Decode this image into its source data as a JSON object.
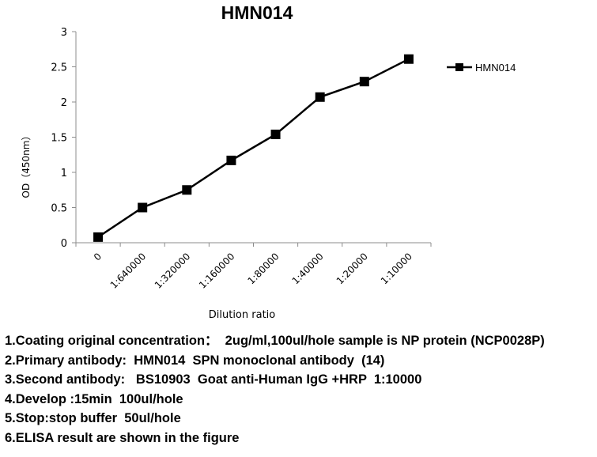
{
  "chart_data": {
    "type": "line",
    "title": "HMN014",
    "xlabel": "Dilution ratio",
    "ylabel": "OD（450nm）",
    "categories": [
      "0",
      "1:640000",
      "1:320000",
      "1:160000",
      "1:80000",
      "1:40000",
      "1:20000",
      "1:10000"
    ],
    "series": [
      {
        "name": "HMN014",
        "values": [
          0.08,
          0.5,
          0.75,
          1.17,
          1.54,
          2.07,
          2.29,
          2.61
        ]
      }
    ],
    "ylim": [
      0,
      3
    ],
    "yticks": [
      "0",
      "0.5",
      "1",
      "1.5",
      "2",
      "2.5",
      "3"
    ],
    "grid": false,
    "legend": "right",
    "colors": {
      "line": "#000000",
      "axis": "#8c8c8c"
    }
  },
  "notes": [
    "1.Coating original concentration：  2ug/ml,100ul/hole sample is NP protein (NCP0028P)",
    "2.Primary antibody:  HMN014  SPN monoclonal antibody  (14)",
    "3.Second antibody:   BS10903  Goat anti-Human IgG +HRP  1:10000",
    "4.Develop :15min  100ul/hole",
    "5.Stop:stop buffer  50ul/hole",
    "6.ELISA result are shown in the figure"
  ]
}
